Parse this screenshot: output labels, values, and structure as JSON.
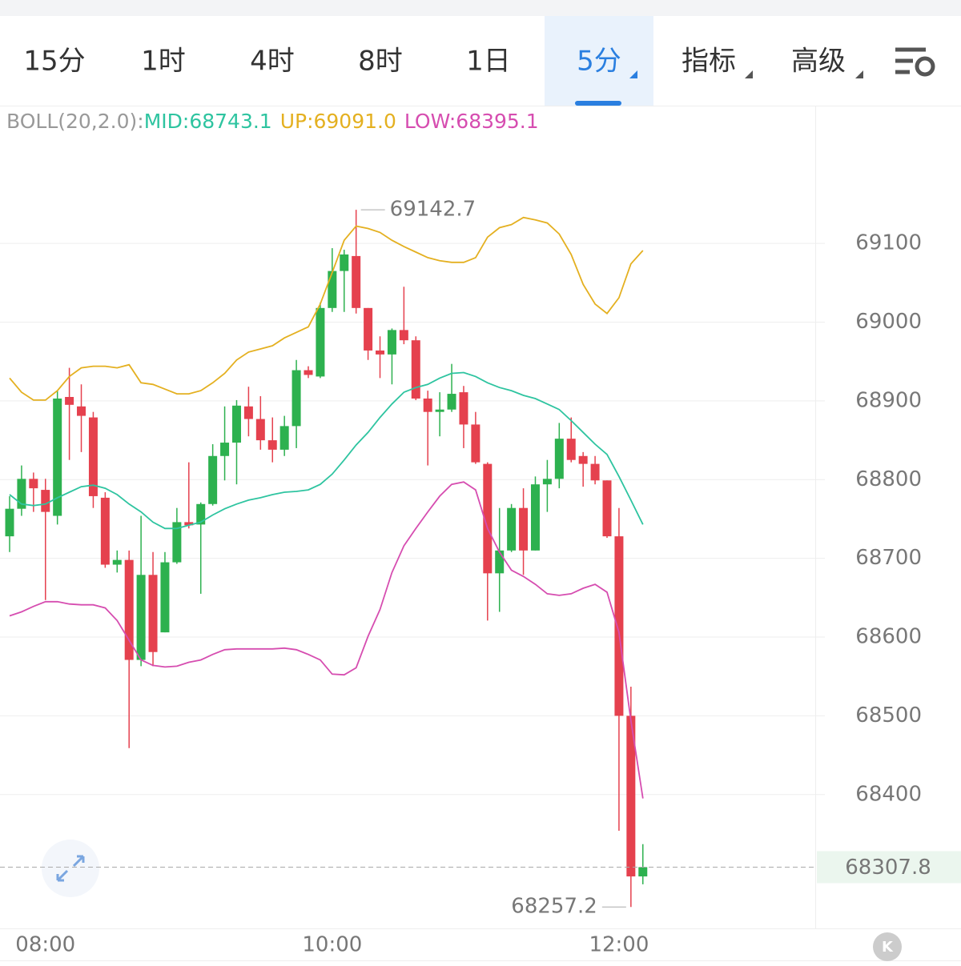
{
  "tabs": [
    "15分",
    "1时",
    "4时",
    "8时",
    "1日",
    "5分",
    "指标",
    "高级"
  ],
  "active_tab": 5,
  "chart_data": {
    "type": "candlestick",
    "indicator": "BOLL(20,2.0):",
    "categories": [
      null,
      null,
      null,
      "08:00",
      null,
      null,
      null,
      null,
      null,
      null,
      null,
      null,
      null,
      null,
      null,
      null,
      null,
      null,
      null,
      null,
      null,
      null,
      null,
      null,
      null,
      null,
      null,
      "10:00",
      null,
      null,
      null,
      null,
      null,
      null,
      null,
      null,
      null,
      null,
      null,
      null,
      null,
      null,
      null,
      null,
      null,
      null,
      null,
      null,
      null,
      null,
      null,
      "12:00",
      null,
      null
    ],
    "open": [
      68728,
      68763,
      68801,
      68787,
      68754,
      68905,
      68893,
      68879,
      68777,
      68692,
      68698,
      68571,
      68679,
      68606,
      68695,
      68746,
      68743,
      68769,
      68830,
      68847,
      68893,
      68877,
      68850,
      68838,
      68868,
      68939,
      68931,
      69018,
      69065,
      69084,
      69018,
      68964,
      68959,
      68990,
      68977,
      68903,
      68886,
      68889,
      68911,
      68870,
      68820,
      68681,
      68710,
      68764,
      68710,
      68794,
      68801,
      68852,
      68830,
      68820,
      68799,
      68728,
      68500,
      68296
    ],
    "high": [
      68779,
      68818,
      68809,
      68801,
      68913,
      68942,
      68921,
      68886,
      68784,
      68710,
      68710,
      68754,
      68708,
      68708,
      68764,
      68822,
      68771,
      68845,
      68893,
      68901,
      68918,
      68906,
      68879,
      68881,
      68952,
      68944,
      69025,
      69094,
      69092,
      69142.7,
      69018,
      68982,
      68992,
      69045,
      68982,
      68913,
      68911,
      68947,
      68919,
      68886,
      68822,
      68764,
      68769,
      68789,
      68804,
      68825,
      68872,
      68879,
      68835,
      68830,
      68799,
      68764,
      68537,
      68337
    ],
    "low": [
      68708,
      68754,
      68759,
      68647,
      68743,
      68825,
      68835,
      68764,
      68688,
      68682,
      68459,
      68563,
      68563,
      68606,
      68693,
      68738,
      68655,
      68767,
      68799,
      68794,
      68855,
      68838,
      68822,
      68830,
      68840,
      68929,
      68929,
      69013,
      69013,
      69011,
      68952,
      68929,
      68921,
      68972,
      68901,
      68818,
      68855,
      68886,
      68840,
      68820,
      68621,
      68632,
      68708,
      68679,
      68710,
      68759,
      68789,
      68822,
      68791,
      68794,
      68726,
      68354,
      68257.2,
      68286
    ],
    "close": [
      68763,
      68801,
      68789,
      68759,
      68903,
      68895,
      68881,
      68779,
      68692,
      68698,
      68571,
      68679,
      68581,
      68695,
      68746,
      68742,
      68769,
      68830,
      68847,
      68894,
      68877,
      68850,
      68838,
      68868,
      68939,
      68933,
      69018,
      69065,
      69086,
      69018,
      68964,
      68959,
      68990,
      68977,
      68903,
      68886,
      68889,
      68909,
      68870,
      68822,
      68681,
      68710,
      68764,
      68710,
      68794,
      68801,
      68852,
      68825,
      68820,
      68799,
      68728,
      68500,
      68296,
      68307.8
    ],
    "up_color": "#2db14f",
    "down_color": "#e5414e",
    "series": [
      {
        "name": "MID:68743.1",
        "color": "#2ec4a0",
        "values": [
          68781,
          68769,
          68767,
          68769,
          68777,
          68784,
          68791,
          68793,
          68789,
          68781,
          68769,
          68759,
          68746,
          68738,
          68738,
          68742,
          68746,
          68755,
          68763,
          68769,
          68774,
          68777,
          68781,
          68784,
          68785,
          68787,
          68794,
          68807,
          68825,
          68844,
          68860,
          68879,
          68896,
          68911,
          68917,
          68921,
          68929,
          68935,
          68936,
          68931,
          68923,
          68917,
          68913,
          68907,
          68903,
          68896,
          68889,
          68875,
          68860,
          68845,
          68832,
          68804,
          68774,
          68743.1
        ]
      },
      {
        "name": "UP:69091.0",
        "color": "#e4b020",
        "values": [
          68929,
          68911,
          68901,
          68901,
          68913,
          68931,
          68942,
          68944,
          68944,
          68942,
          68946,
          68923,
          68921,
          68915,
          68909,
          68909,
          68913,
          68923,
          68935,
          68952,
          68962,
          68966,
          68970,
          68980,
          68987,
          68994,
          69023,
          69063,
          69104,
          69122,
          69119,
          69114,
          69104,
          69096,
          69089,
          69082,
          69078,
          69076,
          69076,
          69082,
          69108,
          69120,
          69124,
          69133,
          69130,
          69126,
          69112,
          69086,
          69048,
          69023,
          69011,
          69031,
          69074,
          69091.0
        ]
      },
      {
        "name": "LOW:68395.1",
        "color": "#d64db0",
        "values": [
          68627,
          68632,
          68639,
          68645,
          68645,
          68642,
          68641,
          68641,
          68637,
          68621,
          68596,
          68571,
          68564,
          68562,
          68563,
          68568,
          68571,
          68578,
          68584,
          68585,
          68585,
          68585,
          68585,
          68586,
          68584,
          68578,
          68571,
          68553,
          68552,
          68561,
          68601,
          68635,
          68682,
          68716,
          68738,
          68759,
          68779,
          68794,
          68797,
          68787,
          68738,
          68708,
          68685,
          68677,
          68667,
          68655,
          68653,
          68655,
          68662,
          68667,
          68657,
          68606,
          68494,
          68395.1
        ]
      }
    ],
    "ylim": [
      68230,
      69274
    ],
    "yticks": [
      68400,
      68500,
      68600,
      68700,
      68800,
      68900,
      69000,
      69100
    ],
    "grid": true
  }
}
